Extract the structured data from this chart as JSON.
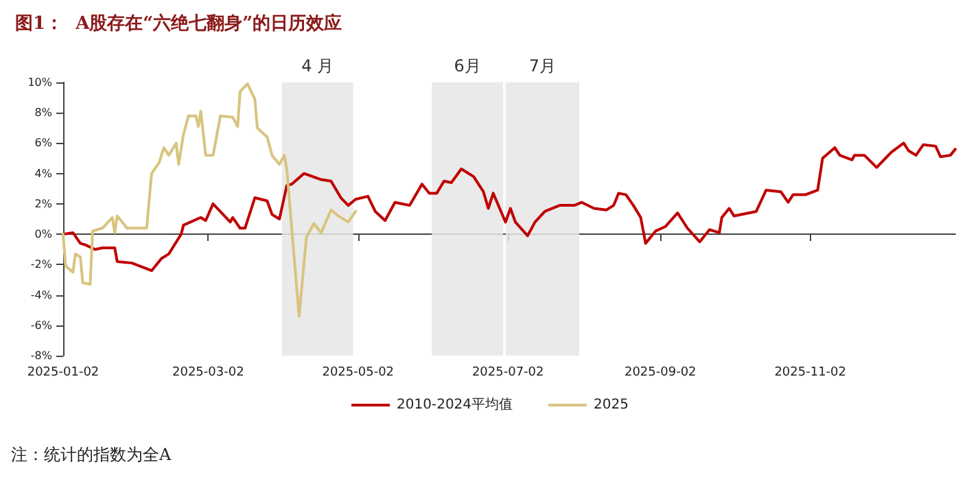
{
  "chart_data": {
    "type": "line",
    "title": "图1：  A股存在“六绝七翻身”的日历效应",
    "annotations": [
      "注：统计的指数为全A"
    ],
    "xlim": [
      "2025-01-02",
      "2025-12-31"
    ],
    "xticks": [
      "2025-01-02",
      "2025-03-02",
      "2025-05-02",
      "2025-07-02",
      "2025-09-02",
      "2025-11-02"
    ],
    "ylim": [
      -8,
      10
    ],
    "yticks": [
      {
        "value": -8,
        "label": "-8%"
      },
      {
        "value": -6,
        "label": "-6%"
      },
      {
        "value": -4,
        "label": "-4%"
      },
      {
        "value": -2,
        "label": "-2%"
      },
      {
        "value": 0,
        "label": "0%"
      },
      {
        "value": 2,
        "label": "2%"
      },
      {
        "value": 4,
        "label": "4%"
      },
      {
        "value": 6,
        "label": "6%"
      },
      {
        "value": 8,
        "label": "8%"
      },
      {
        "value": 10,
        "label": "10%"
      }
    ],
    "legend": "bottom",
    "marker": "none",
    "bands": [
      {
        "axis": "x",
        "from": "2025-04-01",
        "to": "2025-04-30",
        "label": "4 月",
        "color": "#e6e6e6"
      },
      {
        "axis": "x",
        "from": "2025-06-01",
        "to": "2025-06-30",
        "label": "6月",
        "color": "#e6e6e6"
      },
      {
        "axis": "x",
        "from": "2025-07-01",
        "to": "2025-07-31",
        "label": "7月",
        "color": "#e6e6e6"
      }
    ],
    "series": [
      {
        "name": "2010-2024平均值",
        "color": "#c00000",
        "x": [
          "2025-01-02",
          "2025-01-06",
          "2025-01-09",
          "2025-01-11",
          "2025-01-15",
          "2025-01-18",
          "2025-01-23",
          "2025-01-24",
          "2025-01-30",
          "2025-02-07",
          "2025-02-11",
          "2025-02-14",
          "2025-02-19",
          "2025-02-20",
          "2025-02-27",
          "2025-03-01",
          "2025-03-04",
          "2025-03-11",
          "2025-03-12",
          "2025-03-15",
          "2025-03-17",
          "2025-03-21",
          "2025-03-26",
          "2025-03-28",
          "2025-03-31",
          "2025-04-03",
          "2025-04-05",
          "2025-04-10",
          "2025-04-17",
          "2025-04-21",
          "2025-04-25",
          "2025-04-28",
          "2025-05-01",
          "2025-05-06",
          "2025-05-09",
          "2025-05-13",
          "2025-05-17",
          "2025-05-23",
          "2025-05-28",
          "2025-05-31",
          "2025-06-03",
          "2025-06-06",
          "2025-06-09",
          "2025-06-13",
          "2025-06-18",
          "2025-06-22",
          "2025-06-24",
          "2025-06-26",
          "2025-07-01",
          "2025-07-03",
          "2025-07-05",
          "2025-07-10",
          "2025-07-13",
          "2025-07-17",
          "2025-07-23",
          "2025-07-29",
          "2025-08-01",
          "2025-08-06",
          "2025-08-11",
          "2025-08-14",
          "2025-08-16",
          "2025-08-19",
          "2025-08-22",
          "2025-08-25",
          "2025-08-27",
          "2025-08-31",
          "2025-09-04",
          "2025-09-09",
          "2025-09-13",
          "2025-09-18",
          "2025-09-22",
          "2025-09-26",
          "2025-09-27",
          "2025-09-30",
          "2025-10-02",
          "2025-10-11",
          "2025-10-15",
          "2025-10-21",
          "2025-10-24",
          "2025-10-26",
          "2025-10-31",
          "2025-11-05",
          "2025-11-07",
          "2025-11-12",
          "2025-11-14",
          "2025-11-19",
          "2025-11-20",
          "2025-11-24",
          "2025-11-29",
          "2025-12-02",
          "2025-12-05",
          "2025-12-10",
          "2025-12-12",
          "2025-12-15",
          "2025-12-18",
          "2025-12-23",
          "2025-12-25",
          "2025-12-29",
          "2025-12-31"
        ],
        "values": [
          0,
          0.1,
          -0.6,
          -0.7,
          -1.0,
          -0.9,
          -0.9,
          -1.8,
          -1.9,
          -2.4,
          -1.6,
          -1.3,
          0,
          0.6,
          1.1,
          0.9,
          2.0,
          0.8,
          1.1,
          0.4,
          0.4,
          2.4,
          2.2,
          1.3,
          1.0,
          3.2,
          3.3,
          4.0,
          3.6,
          3.5,
          2.4,
          1.9,
          2.3,
          2.5,
          1.5,
          0.9,
          2.1,
          1.9,
          3.3,
          2.7,
          2.7,
          3.5,
          3.4,
          4.3,
          3.8,
          2.8,
          1.7,
          2.7,
          0.8,
          1.7,
          0.8,
          -0.1,
          0.8,
          1.5,
          1.9,
          1.9,
          2.1,
          1.7,
          1.6,
          1.9,
          2.7,
          2.6,
          1.9,
          1.1,
          -0.6,
          0.2,
          0.5,
          1.4,
          0.4,
          -0.5,
          0.3,
          0.1,
          1.1,
          1.7,
          1.2,
          1.5,
          2.9,
          2.8,
          2.1,
          2.6,
          2.6,
          2.9,
          5.0,
          5.7,
          5.2,
          4.9,
          5.2,
          5.2,
          4.4,
          4.9,
          5.4,
          6.0,
          5.5,
          5.2,
          5.9,
          5.8,
          5.1,
          5.2,
          5.6
        ]
      },
      {
        "name": "2025",
        "color": "#d8c47e",
        "x": [
          "2025-01-02",
          "2025-01-03",
          "2025-01-06",
          "2025-01-07",
          "2025-01-09",
          "2025-01-10",
          "2025-01-13",
          "2025-01-14",
          "2025-01-18",
          "2025-01-22",
          "2025-01-23",
          "2025-01-24",
          "2025-01-28",
          "2025-02-05",
          "2025-02-07",
          "2025-02-10",
          "2025-02-12",
          "2025-02-14",
          "2025-02-17",
          "2025-02-18",
          "2025-02-20",
          "2025-02-22",
          "2025-02-25",
          "2025-02-26",
          "2025-02-27",
          "2025-03-01",
          "2025-03-04",
          "2025-03-07",
          "2025-03-12",
          "2025-03-14",
          "2025-03-15",
          "2025-03-18",
          "2025-03-21",
          "2025-03-22",
          "2025-03-26",
          "2025-03-28",
          "2025-03-31",
          "2025-04-02",
          "2025-04-03",
          "2025-04-08",
          "2025-04-11",
          "2025-04-14",
          "2025-04-17",
          "2025-04-21",
          "2025-04-24",
          "2025-04-28",
          "2025-05-01"
        ],
        "values": [
          0,
          -2.1,
          -2.5,
          -1.3,
          -1.5,
          -3.2,
          -3.3,
          0.2,
          0.4,
          1.1,
          0.1,
          1.2,
          0.4,
          0.4,
          4.0,
          4.7,
          5.7,
          5.2,
          6.0,
          4.6,
          6.6,
          7.8,
          7.8,
          7.1,
          8.1,
          5.2,
          5.2,
          7.8,
          7.7,
          7.1,
          9.4,
          9.9,
          8.9,
          7.0,
          6.4,
          5.2,
          4.6,
          5.2,
          4.3,
          -5.4,
          -0.2,
          0.7,
          0.1,
          1.6,
          1.2,
          0.8,
          1.5
        ]
      }
    ]
  }
}
